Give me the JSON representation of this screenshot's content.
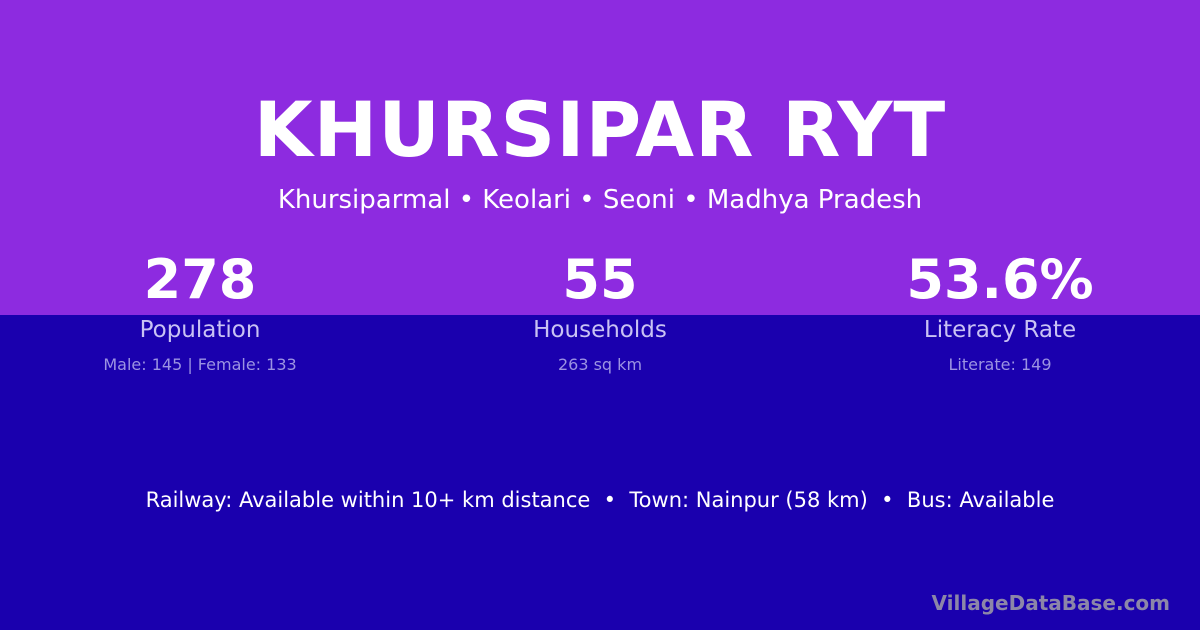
{
  "colors": {
    "top_background": "#8d2be0",
    "bottom_background": "#1a00ae"
  },
  "title": "KHURSIPAR RYT",
  "subtitle": "Khursiparmal • Keolari • Seoni • Madhya Pradesh",
  "stats": [
    {
      "value": "278",
      "label": "Population",
      "detail": "Male: 145 | Female: 133"
    },
    {
      "value": "55",
      "label": "Households",
      "detail": "263 sq km"
    },
    {
      "value": "53.6%",
      "label": "Literacy Rate",
      "detail": "Literate: 149"
    }
  ],
  "transport": "Railway: Available within 10+ km distance  •  Town: Nainpur (58 km)  •  Bus: Available",
  "brand": "VillageDataBase.com"
}
